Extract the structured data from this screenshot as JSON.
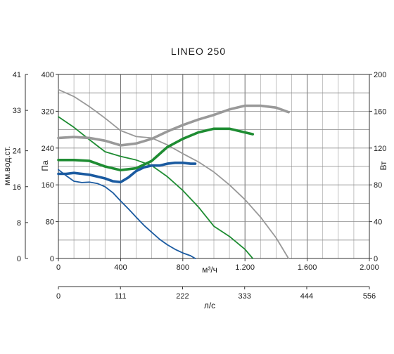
{
  "chart_data": {
    "type": "line",
    "title": "LINEO 250",
    "grid": true,
    "x_axis": {
      "label": "м³/ч",
      "range": [
        0,
        2000
      ],
      "ticks": [
        0,
        400,
        800,
        1200,
        1600,
        2000
      ],
      "tick_labels": [
        "0",
        "400",
        "800",
        "1.200",
        "1.600",
        "2.000"
      ]
    },
    "x2_axis": {
      "label": "л/с",
      "range": [
        0,
        556
      ],
      "ticks": [
        0,
        111,
        222,
        333,
        444,
        556
      ],
      "tick_labels": [
        "0",
        "111",
        "222",
        "333",
        "444",
        "556"
      ]
    },
    "y_axis": {
      "label": "Па",
      "range": [
        0,
        400
      ],
      "ticks": [
        0,
        80,
        160,
        240,
        320,
        400
      ],
      "tick_labels": [
        "0",
        "80",
        "160",
        "240",
        "320",
        "400"
      ]
    },
    "y_left_outer_axis": {
      "label": "мм.вод.ст.",
      "range": [
        0,
        41
      ],
      "ticks": [
        0,
        8,
        16,
        24,
        33,
        41
      ],
      "tick_labels": [
        "0",
        "8",
        "16",
        "24",
        "33",
        "41"
      ]
    },
    "y_right_axis": {
      "label": "Вт",
      "range": [
        0,
        200
      ],
      "ticks": [
        0,
        40,
        80,
        120,
        160,
        200
      ],
      "tick_labels": [
        "0",
        "40",
        "80",
        "120",
        "160",
        "200"
      ]
    },
    "series": [
      {
        "kind": "pressure",
        "axis": "left",
        "color": "#999999",
        "x": [
          0,
          100,
          200,
          300,
          400,
          500,
          600,
          700,
          800,
          900,
          1000,
          1100,
          1200,
          1300,
          1400,
          1480
        ],
        "y": [
          367,
          352,
          330,
          305,
          278,
          265,
          262,
          247,
          228,
          210,
          188,
          160,
          128,
          90,
          45,
          0
        ]
      },
      {
        "kind": "pressure",
        "axis": "left",
        "color": "#1e8c32",
        "x": [
          0,
          100,
          200,
          300,
          400,
          500,
          600,
          700,
          800,
          900,
          1000,
          1100,
          1200,
          1250
        ],
        "y": [
          308,
          285,
          258,
          232,
          222,
          214,
          202,
          178,
          148,
          112,
          70,
          48,
          20,
          0
        ]
      },
      {
        "kind": "pressure",
        "axis": "left",
        "color": "#1a5aa0",
        "x": [
          0,
          50,
          100,
          150,
          200,
          250,
          300,
          350,
          400,
          450,
          500,
          550,
          600,
          650,
          700,
          750,
          800,
          850,
          880
        ],
        "y": [
          193,
          180,
          168,
          165,
          166,
          163,
          156,
          143,
          125,
          108,
          90,
          72,
          57,
          42,
          30,
          20,
          12,
          6,
          0
        ]
      },
      {
        "kind": "power",
        "axis": "right",
        "color": "#999999",
        "x": [
          0,
          100,
          200,
          300,
          400,
          500,
          600,
          700,
          800,
          900,
          1000,
          1100,
          1200,
          1300,
          1400,
          1480
        ],
        "y": [
          131,
          132,
          131,
          128,
          123,
          125,
          130,
          138,
          145,
          151,
          156,
          162,
          166,
          166,
          164,
          159
        ]
      },
      {
        "kind": "power",
        "axis": "right",
        "color": "#1e8c32",
        "x": [
          0,
          100,
          200,
          300,
          400,
          500,
          600,
          700,
          800,
          900,
          1000,
          1100,
          1200,
          1250
        ],
        "y": [
          107,
          107,
          106,
          100,
          96,
          98,
          106,
          121,
          130,
          137,
          141,
          141,
          137,
          135
        ]
      },
      {
        "kind": "power",
        "axis": "right",
        "color": "#1a5aa0",
        "x": [
          0,
          50,
          100,
          150,
          200,
          250,
          300,
          350,
          400,
          450,
          500,
          550,
          600,
          650,
          700,
          750,
          800,
          850,
          880
        ],
        "y": [
          92,
          92,
          93,
          92,
          91,
          89,
          87,
          84,
          83,
          88,
          95,
          99,
          101,
          101,
          103,
          104,
          104,
          103,
          103
        ]
      }
    ]
  }
}
